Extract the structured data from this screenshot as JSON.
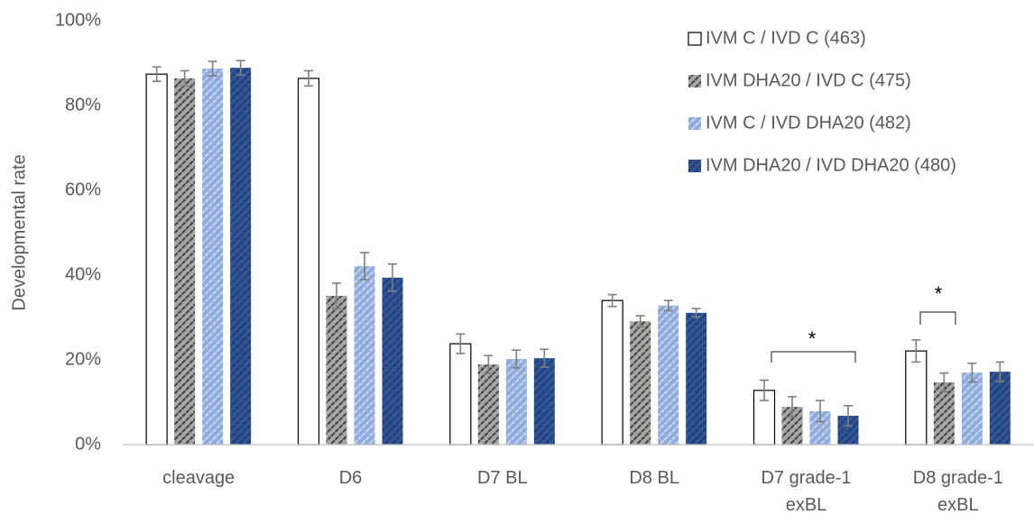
{
  "chart_data": {
    "type": "bar",
    "y_label": "Developmental rate",
    "categories": [
      "cleavage",
      "D6",
      "D7 BL",
      "D8 BL",
      "D7 grade-1 exBL",
      "D8 grade-1 exBL"
    ],
    "series": [
      {
        "name": "IVM C / IVD C (463)",
        "color": "#ffffff",
        "values": [
          87.4,
          86.4,
          23.8,
          34.0,
          12.8,
          22.1
        ],
        "errors": [
          1.7,
          1.8,
          2.3,
          1.4,
          2.4,
          2.6
        ]
      },
      {
        "name": "IVM DHA20 / IVD C (475)",
        "color": "#a6a6a6",
        "values": [
          86.4,
          35.1,
          18.9,
          29.1,
          8.9,
          14.7
        ],
        "errors": [
          1.8,
          3.0,
          2.1,
          1.3,
          2.4,
          2.2
        ]
      },
      {
        "name": "IVM C / IVD DHA20 (482)",
        "color": "#8faadc",
        "values": [
          88.7,
          42.1,
          20.2,
          32.8,
          7.9,
          17.0
        ],
        "errors": [
          1.7,
          3.2,
          2.1,
          1.2,
          2.5,
          2.2
        ]
      },
      {
        "name": "IVM DHA20 / IVD DHA20 (480)",
        "color": "#2f5597",
        "values": [
          88.9,
          39.4,
          20.4,
          31.1,
          6.8,
          17.2
        ],
        "errors": [
          1.7,
          3.2,
          2.1,
          1.0,
          2.4,
          2.3
        ]
      }
    ],
    "ylim": [
      0,
      100
    ],
    "yticks": [
      {
        "value": 0,
        "label": "0%"
      },
      {
        "value": 20,
        "label": "20%"
      },
      {
        "value": 40,
        "label": "40%"
      },
      {
        "value": 60,
        "label": "60%"
      },
      {
        "value": 80,
        "label": "80%"
      },
      {
        "value": 100,
        "label": "100%"
      }
    ],
    "grid": false,
    "annotations": [
      "*",
      "*"
    ]
  }
}
